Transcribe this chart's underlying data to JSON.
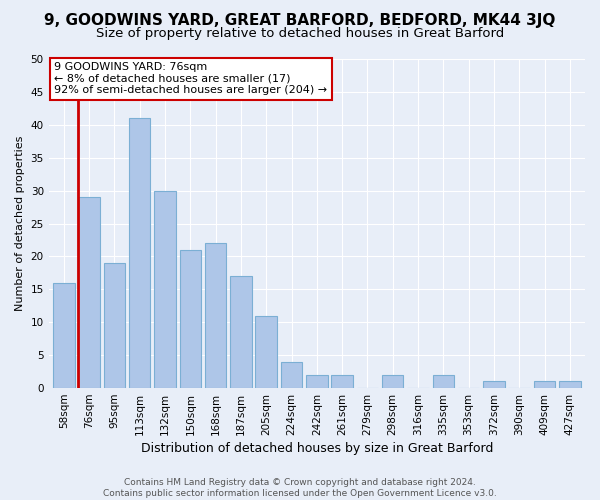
{
  "title1": "9, GOODWINS YARD, GREAT BARFORD, BEDFORD, MK44 3JQ",
  "title2": "Size of property relative to detached houses in Great Barford",
  "xlabel": "Distribution of detached houses by size in Great Barford",
  "ylabel": "Number of detached properties",
  "categories": [
    "58sqm",
    "76sqm",
    "95sqm",
    "113sqm",
    "132sqm",
    "150sqm",
    "168sqm",
    "187sqm",
    "205sqm",
    "224sqm",
    "242sqm",
    "261sqm",
    "279sqm",
    "298sqm",
    "316sqm",
    "335sqm",
    "353sqm",
    "372sqm",
    "390sqm",
    "409sqm",
    "427sqm"
  ],
  "values": [
    16,
    29,
    19,
    41,
    30,
    21,
    22,
    17,
    11,
    4,
    2,
    2,
    0,
    2,
    0,
    2,
    0,
    1,
    0,
    1,
    1
  ],
  "bar_color": "#aec6e8",
  "bar_edge_color": "#7bafd4",
  "highlight_bar_index": 1,
  "red_line_color": "#cc0000",
  "ylim": [
    0,
    50
  ],
  "yticks": [
    0,
    5,
    10,
    15,
    20,
    25,
    30,
    35,
    40,
    45,
    50
  ],
  "annotation_text_line1": "9 GOODWINS YARD: 76sqm",
  "annotation_text_line2": "← 8% of detached houses are smaller (17)",
  "annotation_text_line3": "92% of semi-detached houses are larger (204) →",
  "annotation_box_edgecolor": "#cc0000",
  "annotation_box_facecolor": "#ffffff",
  "footer1": "Contains HM Land Registry data © Crown copyright and database right 2024.",
  "footer2": "Contains public sector information licensed under the Open Government Licence v3.0.",
  "bg_color": "#e8eef8",
  "grid_color": "#ffffff",
  "title1_fontsize": 11,
  "title2_fontsize": 9.5,
  "xlabel_fontsize": 9,
  "ylabel_fontsize": 8,
  "tick_fontsize": 7.5,
  "annotation_fontsize": 8,
  "footer_fontsize": 6.5
}
